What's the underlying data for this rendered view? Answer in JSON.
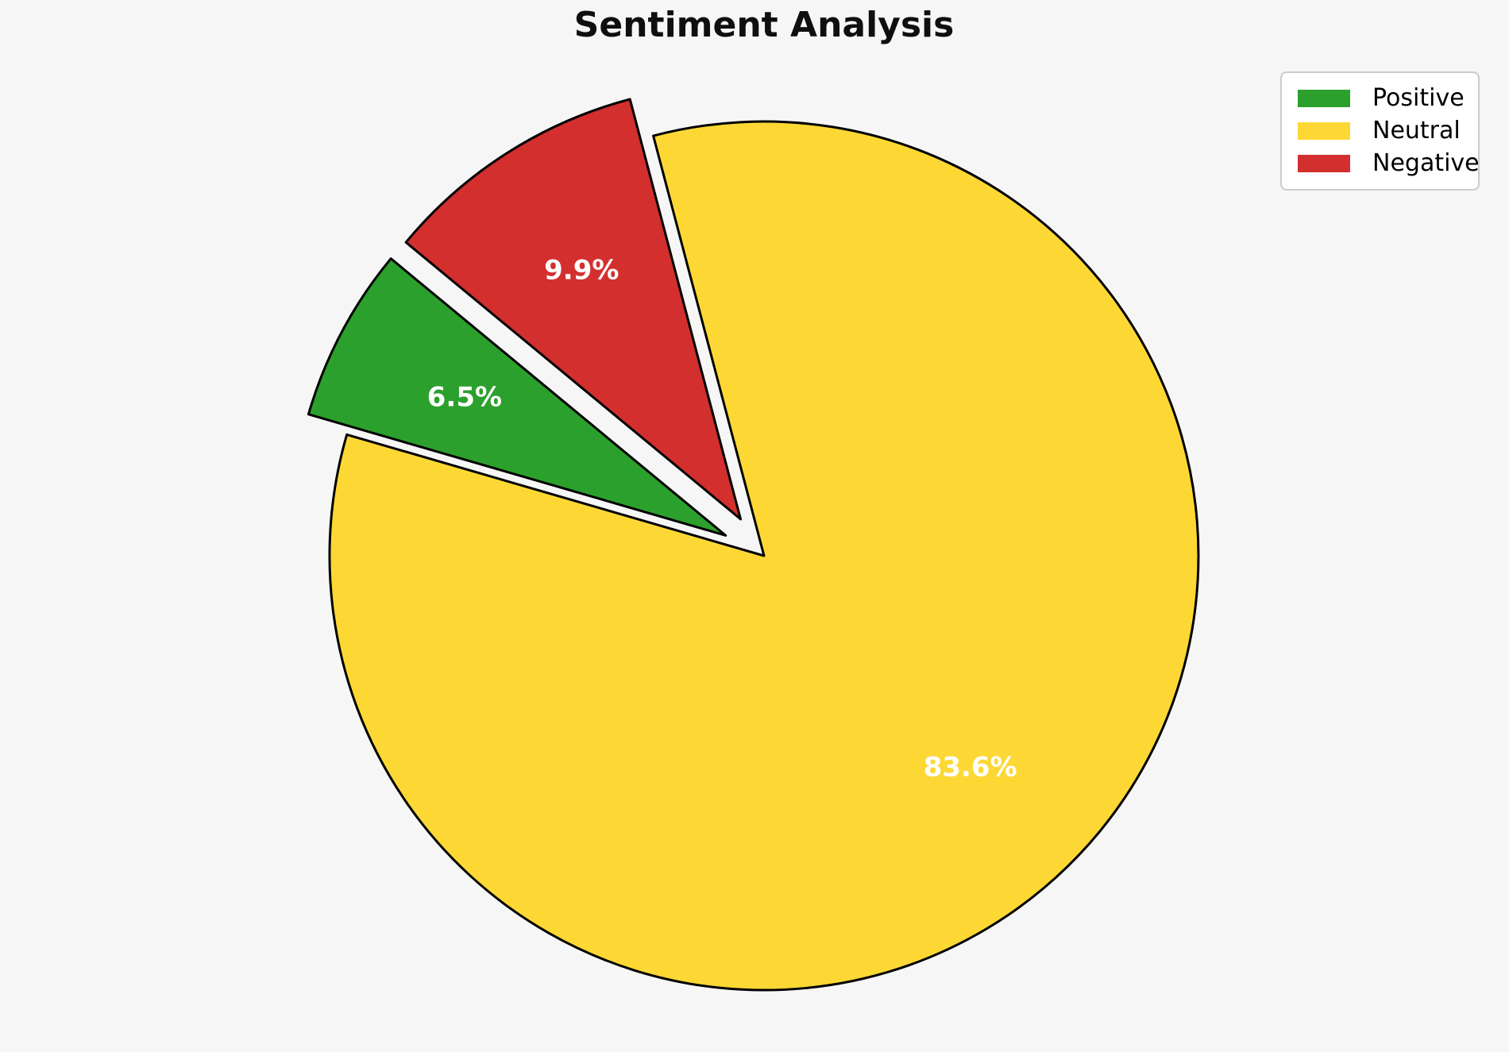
{
  "chart_data": {
    "type": "pie",
    "title": "Sentiment Analysis",
    "slices": [
      {
        "label": "Positive",
        "value": 6.5,
        "percent_label": "6.5%",
        "color": "#2ca02c",
        "explode": 0.1
      },
      {
        "label": "Neutral",
        "value": 83.6,
        "percent_label": "83.6%",
        "color": "#fdd835",
        "explode": 0
      },
      {
        "label": "Negative",
        "value": 9.9,
        "percent_label": "9.9%",
        "color": "#d32f2f",
        "explode": 0.1
      }
    ],
    "start_angle_deg": 140.4,
    "direction": "counterclockwise",
    "edge_color": "#000000",
    "percent_label_color": "#ffffff",
    "percent_label_distance": 0.68,
    "background_color": "#f6f6f6",
    "legend": {
      "position": "upper-right",
      "entries": [
        "Positive",
        "Neutral",
        "Negative"
      ]
    }
  }
}
